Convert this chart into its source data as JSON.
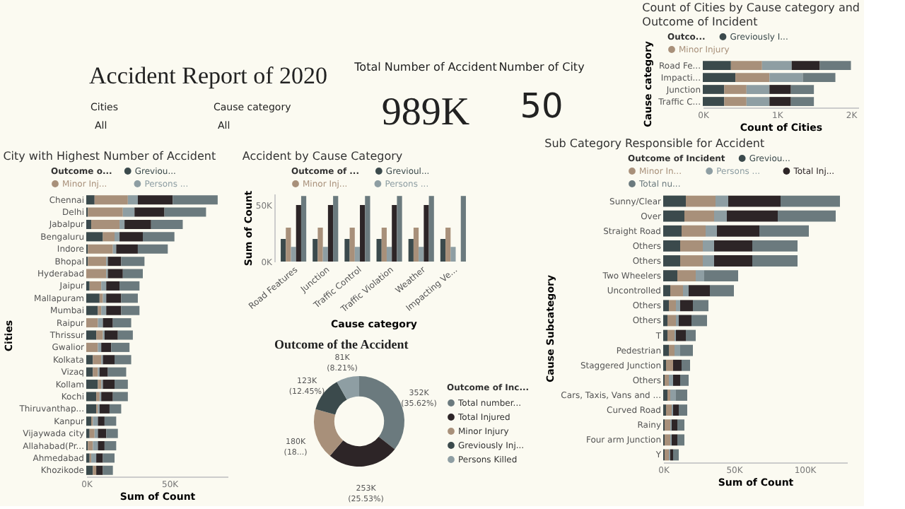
{
  "chart_data": [
    {
      "type": "other",
      "title": "Accident Report of 2020",
      "annotations": [
        "Cities",
        "All",
        "Cause category",
        "All",
        "Total Number of Accident",
        "989K",
        "Number of City",
        "50"
      ]
    },
    {
      "type": "bar",
      "orientation": "horizontal",
      "stacked": true,
      "title": "City with Highest Number of Accident",
      "xlabel": "Sum of Count",
      "ylabel": "Cities",
      "legend_title": "Outcome o...",
      "legend": "top",
      "categories": [
        "Chennai",
        "Delhi",
        "Jabalpur",
        "Bengaluru",
        "Indore",
        "Bhopal",
        "Hyderabad",
        "Jaipur",
        "Mallapuram",
        "Mumbai",
        "Raipur",
        "Thrissur",
        "Gwalior",
        "Kolkata",
        "Vizaq",
        "Kollam",
        "Kochi",
        "Thiruvanthap...",
        "Kanpur",
        "Vijaywada city",
        "Allahabad(Pr...",
        "Ahmedabad",
        "Khozikode"
      ],
      "xlim": [
        0,
        85
      ],
      "xticks": [
        {
          "value": 0,
          "label": "0K"
        },
        {
          "value": 50,
          "label": "50K"
        }
      ],
      "series": [
        {
          "name": "Greviou...",
          "color": "#3b4a4c",
          "values": [
            5,
            1,
            3,
            10,
            1,
            1,
            0,
            2,
            8,
            7,
            0,
            6,
            0,
            4,
            4,
            7,
            6,
            6,
            3,
            2,
            1,
            2,
            4
          ]
        },
        {
          "name": "Minor Inj...",
          "color": "#a8907a",
          "values": [
            20,
            21,
            17,
            7,
            15,
            11,
            12,
            7,
            2,
            2,
            7,
            4,
            7,
            5,
            3,
            2,
            2,
            1,
            1,
            3,
            3,
            1,
            2
          ]
        },
        {
          "name": "Persons ...",
          "color": "#8e9ea3",
          "values": [
            6,
            7,
            3,
            3,
            2,
            1,
            1,
            3,
            2,
            3,
            3,
            1,
            2,
            1,
            1,
            1,
            1,
            1,
            3,
            2,
            3,
            3,
            0
          ]
        },
        {
          "color": "#2d2527",
          "values": [
            21,
            18,
            16,
            14,
            13,
            8,
            9,
            8,
            9,
            9,
            6,
            8,
            6,
            7,
            5,
            7,
            7,
            6,
            4,
            5,
            4,
            4,
            4
          ]
        },
        {
          "color": "#6b7a7e",
          "values": [
            27,
            25,
            19,
            19,
            18,
            14,
            12,
            12,
            10,
            11,
            11,
            9,
            11,
            10,
            11,
            8,
            9,
            7,
            7,
            7,
            7,
            7,
            6
          ]
        }
      ]
    },
    {
      "type": "bar",
      "title": "Accident by Cause Category",
      "xlabel": "Cause category",
      "ylabel": "Sum of Count",
      "legend_title": "Outcome of ...",
      "legend": "top",
      "categories": [
        "Road Features",
        "Junction",
        "Traffic Control",
        "Traffic Violation",
        "Weather",
        "Impacting Ve..."
      ],
      "ylim": [
        0,
        60
      ],
      "yticks": [
        {
          "value": 0,
          "label": "0K"
        },
        {
          "value": 50,
          "label": "50K"
        }
      ],
      "series": [
        {
          "name": "Grevioul...",
          "color": "#3b4a4c",
          "values": [
            20,
            20,
            20,
            20,
            20,
            20
          ]
        },
        {
          "name": "Minor Inj...",
          "color": "#a8907a",
          "values": [
            30,
            30,
            30,
            30,
            30,
            30
          ]
        },
        {
          "name": "Persons ...",
          "color": "#8e9ea3",
          "values": [
            13,
            13,
            13,
            13,
            13,
            13
          ]
        },
        {
          "color": "#2d2527",
          "values": [
            50,
            50,
            50,
            50,
            50,
            null
          ]
        },
        {
          "color": "#6b7a7e",
          "values": [
            58,
            58,
            58,
            58,
            58,
            58
          ]
        }
      ]
    },
    {
      "type": "donut",
      "title": "Outcome of the Accident",
      "legend_title": "Outcome of Inc...",
      "legend": "right",
      "categories": [
        "Total number...",
        "Total Injured",
        "Minor Injury",
        "Greviously Inj...",
        "Persons Killed"
      ],
      "values": [
        352000,
        253000,
        180000,
        123000,
        81000
      ],
      "value_labels": [
        "352K (35.62%)",
        "253K (25.53%)",
        "180K (18...)",
        "123K (12.45%)",
        "81K (8.21%)"
      ],
      "colors": [
        "#6b7a7e",
        "#2d2527",
        "#a8907a",
        "#3b4a4c",
        "#8e9ea3"
      ]
    },
    {
      "type": "bar",
      "orientation": "horizontal",
      "stacked": true,
      "title": "Count of Cities by Cause category and Outcome of Incident",
      "xlabel": "Count of Cities",
      "ylabel": "Cause category",
      "legend_title": "Outco...",
      "legend": "top",
      "categories": [
        "Road Fe...",
        "Impacti...",
        "Junction",
        "Traffic C..."
      ],
      "xlim": [
        0,
        2.1
      ],
      "xticks": [
        {
          "value": 0,
          "label": "0K"
        },
        {
          "value": 1,
          "label": "1K"
        },
        {
          "value": 2,
          "label": "2K"
        }
      ],
      "series": [
        {
          "name": "Greviously I...",
          "color": "#3b4a4c",
          "values": [
            0.38,
            0.44,
            0.29,
            0.29
          ]
        },
        {
          "name": "Minor Injury",
          "color": "#a8907a",
          "values": [
            0.42,
            0.46,
            0.3,
            0.3
          ]
        },
        {
          "color": "#8e9ea3",
          "values": [
            0.4,
            0.45,
            0.31,
            0.31
          ]
        },
        {
          "color": "#2d2527",
          "values": [
            0.38,
            null,
            0.29,
            0.29
          ]
        },
        {
          "color": "#6b7a7e",
          "values": [
            0.42,
            0.44,
            0.31,
            0.31
          ]
        }
      ]
    },
    {
      "type": "bar",
      "orientation": "horizontal",
      "stacked": true,
      "title": "Sub Category Responsible for Accident",
      "xlabel": "Sum of Count",
      "ylabel": "Cause Subcategory",
      "legend_title": "Outcome of Incident",
      "legend": "top",
      "categories": [
        "Sunny/Clear",
        "Over",
        "Straight Road",
        "Others",
        "Others",
        "Two Wheelers",
        "Uncontrolled",
        "Others",
        "Others",
        "T",
        "Pedestrian",
        "Staggered Junction",
        "Others",
        "Cars, Taxis, Vans and ...",
        "Curved Road",
        "Rainy",
        "Four arm Junction",
        "Y"
      ],
      "xlim": [
        0,
        130
      ],
      "xticks": [
        {
          "value": 0,
          "label": "0K"
        },
        {
          "value": 50,
          "label": "50K"
        },
        {
          "value": 100,
          "label": "100K"
        }
      ],
      "series": [
        {
          "name": "Greviou...",
          "color": "#3b4a4c",
          "values": [
            16,
            15,
            13,
            12,
            12,
            10,
            5,
            4,
            3,
            3,
            4,
            2,
            1,
            3,
            2,
            1,
            1,
            1
          ]
        },
        {
          "name": "Minor In...",
          "color": "#a8907a",
          "values": [
            21,
            21,
            17,
            16,
            16,
            13,
            9,
            5,
            6,
            5,
            4,
            5,
            3,
            2,
            4,
            4,
            4,
            3
          ]
        },
        {
          "name": "Persons ...",
          "color": "#8e9ea3",
          "values": [
            9,
            9,
            8,
            8,
            8,
            6,
            4,
            3,
            2,
            1,
            4,
            0,
            3,
            4,
            1,
            1,
            1,
            1
          ]
        },
        {
          "name": "Total Inj...",
          "color": "#2d2527",
          "values": [
            37,
            36,
            30,
            27,
            27,
            null,
            15,
            9,
            9,
            7,
            null,
            6,
            5,
            null,
            4,
            4,
            4,
            2
          ]
        },
        {
          "name": "Total nu...",
          "color": "#6b7a7e",
          "values": [
            42,
            41,
            35,
            32,
            32,
            24,
            17,
            11,
            11,
            7,
            9,
            6,
            6,
            8,
            6,
            5,
            5,
            4
          ]
        }
      ]
    }
  ]
}
